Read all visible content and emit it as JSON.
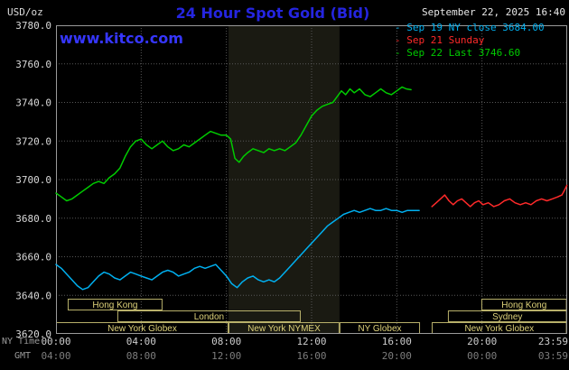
{
  "header": {
    "unit_label": "USD/oz",
    "title": "24 Hour Spot Gold (Bid)",
    "title_color": "#2525e0",
    "datetime": "September 22, 2025 16:40",
    "watermark": "www.kitco.com",
    "watermark_color": "#3636ff"
  },
  "legend": [
    {
      "marker": "-",
      "label": "Sep 19 NY close 3684.00",
      "color": "#00b0f0"
    },
    {
      "marker": "-",
      "label": "Sep 21 Sunday",
      "color": "#ff2a2a"
    },
    {
      "marker": "-",
      "label": "Sep 22 Last 3746.60",
      "color": "#00cc00"
    }
  ],
  "axis": {
    "ny_time_label": "NY Time",
    "gmt_label": "GMT"
  },
  "chart_data": {
    "type": "line",
    "title": "24 Hour Spot Gold (Bid)",
    "xlabel": "NY Time / GMT",
    "ylabel": "USD/oz",
    "x_range": [
      0,
      24
    ],
    "y_range": [
      3620,
      3780
    ],
    "grid": "dotted",
    "grid_color": "#575757",
    "border_color": "#9a9a9a",
    "band": {
      "start": 8.1,
      "end": 13.31,
      "color": "#1a1a12",
      "meaning": "NYMEX session shading"
    },
    "y_ticks": [
      {
        "v": 3780,
        "label": "3780.0"
      },
      {
        "v": 3760,
        "label": "3760.0"
      },
      {
        "v": 3740,
        "label": "3740.0"
      },
      {
        "v": 3720,
        "label": "3720.0"
      },
      {
        "v": 3700,
        "label": "3700.0"
      },
      {
        "v": 3680,
        "label": "3680.0"
      },
      {
        "v": 3660,
        "label": "3660.0"
      },
      {
        "v": 3640,
        "label": "3640.0"
      },
      {
        "v": 3620,
        "label": "3620.0"
      }
    ],
    "x_ticks": [
      {
        "h": 0,
        "ny": "00:00",
        "gmt": "04:00",
        "grid": false,
        "align": "middle"
      },
      {
        "h": 4,
        "ny": "04:00",
        "gmt": "08:00",
        "grid": true,
        "align": "middle"
      },
      {
        "h": 8,
        "ny": "08:00",
        "gmt": "12:00",
        "grid": true,
        "align": "middle"
      },
      {
        "h": 12,
        "ny": "12:00",
        "gmt": "16:00",
        "grid": true,
        "align": "middle"
      },
      {
        "h": 16,
        "ny": "16:00",
        "gmt": "20:00",
        "grid": true,
        "align": "middle"
      },
      {
        "h": 20,
        "ny": "20:00",
        "gmt": "00:00",
        "grid": true,
        "align": "middle"
      },
      {
        "h": 23.983,
        "ny": "23:59",
        "gmt": "03:59",
        "grid": false,
        "align": "end"
      }
    ],
    "series": [
      {
        "id": "sep19",
        "name": "Sep 19 NY close 3684.00",
        "color": "#00b0f0",
        "points": [
          [
            0,
            3656
          ],
          [
            0.25,
            3654
          ],
          [
            0.5,
            3651
          ],
          [
            0.75,
            3648
          ],
          [
            1,
            3645
          ],
          [
            1.25,
            3643
          ],
          [
            1.5,
            3644
          ],
          [
            1.75,
            3647
          ],
          [
            2,
            3650
          ],
          [
            2.25,
            3652
          ],
          [
            2.5,
            3651
          ],
          [
            2.75,
            3649
          ],
          [
            3,
            3648
          ],
          [
            3.25,
            3650
          ],
          [
            3.5,
            3652
          ],
          [
            3.75,
            3651
          ],
          [
            4,
            3650
          ],
          [
            4.25,
            3649
          ],
          [
            4.5,
            3648
          ],
          [
            4.75,
            3650
          ],
          [
            5,
            3652
          ],
          [
            5.25,
            3653
          ],
          [
            5.5,
            3652
          ],
          [
            5.75,
            3650
          ],
          [
            6,
            3651
          ],
          [
            6.25,
            3652
          ],
          [
            6.5,
            3654
          ],
          [
            6.75,
            3655
          ],
          [
            7,
            3654
          ],
          [
            7.25,
            3655
          ],
          [
            7.5,
            3656
          ],
          [
            7.75,
            3653
          ],
          [
            8,
            3650
          ],
          [
            8.25,
            3646
          ],
          [
            8.5,
            3644
          ],
          [
            8.75,
            3647
          ],
          [
            9,
            3649
          ],
          [
            9.25,
            3650
          ],
          [
            9.5,
            3648
          ],
          [
            9.75,
            3647
          ],
          [
            10,
            3648
          ],
          [
            10.25,
            3647
          ],
          [
            10.5,
            3649
          ],
          [
            10.75,
            3652
          ],
          [
            11,
            3655
          ],
          [
            11.25,
            3658
          ],
          [
            11.5,
            3661
          ],
          [
            11.75,
            3664
          ],
          [
            12,
            3667
          ],
          [
            12.25,
            3670
          ],
          [
            12.5,
            3673
          ],
          [
            12.75,
            3676
          ],
          [
            13,
            3678
          ],
          [
            13.25,
            3680
          ],
          [
            13.5,
            3682
          ],
          [
            13.75,
            3683
          ],
          [
            14,
            3684
          ],
          [
            14.25,
            3683
          ],
          [
            14.5,
            3684
          ],
          [
            14.75,
            3685
          ],
          [
            15,
            3684
          ],
          [
            15.25,
            3684
          ],
          [
            15.5,
            3685
          ],
          [
            15.75,
            3684
          ],
          [
            16,
            3684
          ],
          [
            16.25,
            3683
          ],
          [
            16.5,
            3684
          ],
          [
            16.75,
            3684
          ],
          [
            17.05,
            3684
          ]
        ]
      },
      {
        "id": "sep21",
        "name": "Sep 21 Sunday",
        "color": "#ff2a2a",
        "points": [
          [
            17.65,
            3686
          ],
          [
            17.85,
            3688
          ],
          [
            18.05,
            3690
          ],
          [
            18.25,
            3692
          ],
          [
            18.45,
            3689
          ],
          [
            18.65,
            3687
          ],
          [
            18.85,
            3689
          ],
          [
            19.05,
            3690
          ],
          [
            19.25,
            3688
          ],
          [
            19.45,
            3686
          ],
          [
            19.65,
            3688
          ],
          [
            19.85,
            3689
          ],
          [
            20.05,
            3687
          ],
          [
            20.3,
            3688
          ],
          [
            20.55,
            3686
          ],
          [
            20.8,
            3687
          ],
          [
            21.05,
            3689
          ],
          [
            21.3,
            3690
          ],
          [
            21.55,
            3688
          ],
          [
            21.8,
            3687
          ],
          [
            22.05,
            3688
          ],
          [
            22.3,
            3687
          ],
          [
            22.55,
            3689
          ],
          [
            22.8,
            3690
          ],
          [
            23.05,
            3689
          ],
          [
            23.3,
            3690
          ],
          [
            23.55,
            3691
          ],
          [
            23.75,
            3692
          ],
          [
            23.9,
            3695
          ],
          [
            23.983,
            3697
          ]
        ]
      },
      {
        "id": "sep22",
        "name": "Sep 22 Last 3746.60",
        "color": "#00cc00",
        "points": [
          [
            0,
            3693
          ],
          [
            0.25,
            3691
          ],
          [
            0.5,
            3689
          ],
          [
            0.75,
            3690
          ],
          [
            1,
            3692
          ],
          [
            1.25,
            3694
          ],
          [
            1.5,
            3696
          ],
          [
            1.75,
            3698
          ],
          [
            2,
            3699
          ],
          [
            2.25,
            3698
          ],
          [
            2.5,
            3701
          ],
          [
            2.75,
            3703
          ],
          [
            3,
            3706
          ],
          [
            3.25,
            3712
          ],
          [
            3.5,
            3717
          ],
          [
            3.75,
            3720
          ],
          [
            4,
            3721
          ],
          [
            4.25,
            3718
          ],
          [
            4.5,
            3716
          ],
          [
            4.75,
            3718
          ],
          [
            5,
            3720
          ],
          [
            5.25,
            3717
          ],
          [
            5.5,
            3715
          ],
          [
            5.75,
            3716
          ],
          [
            6,
            3718
          ],
          [
            6.25,
            3717
          ],
          [
            6.5,
            3719
          ],
          [
            6.75,
            3721
          ],
          [
            7,
            3723
          ],
          [
            7.25,
            3725
          ],
          [
            7.5,
            3724
          ],
          [
            7.75,
            3723
          ],
          [
            8,
            3723
          ],
          [
            8.2,
            3721
          ],
          [
            8.4,
            3711
          ],
          [
            8.6,
            3709
          ],
          [
            8.8,
            3712
          ],
          [
            9,
            3714
          ],
          [
            9.25,
            3716
          ],
          [
            9.5,
            3715
          ],
          [
            9.75,
            3714
          ],
          [
            10,
            3716
          ],
          [
            10.25,
            3715
          ],
          [
            10.5,
            3716
          ],
          [
            10.75,
            3715
          ],
          [
            11,
            3717
          ],
          [
            11.25,
            3719
          ],
          [
            11.5,
            3723
          ],
          [
            11.75,
            3728
          ],
          [
            12,
            3733
          ],
          [
            12.25,
            3736
          ],
          [
            12.5,
            3738
          ],
          [
            12.75,
            3739
          ],
          [
            13,
            3740
          ],
          [
            13.2,
            3743
          ],
          [
            13.4,
            3746
          ],
          [
            13.6,
            3744
          ],
          [
            13.8,
            3747
          ],
          [
            14,
            3745
          ],
          [
            14.25,
            3747
          ],
          [
            14.5,
            3744
          ],
          [
            14.75,
            3743
          ],
          [
            15,
            3745
          ],
          [
            15.25,
            3747
          ],
          [
            15.5,
            3745
          ],
          [
            15.75,
            3744
          ],
          [
            16,
            3746
          ],
          [
            16.25,
            3748
          ],
          [
            16.45,
            3747
          ],
          [
            16.67,
            3746.6
          ]
        ]
      }
    ],
    "sessions": {
      "border_color": "#b8b06a",
      "text_color": "#ded27a",
      "boxes": [
        {
          "row": 0,
          "start": 0.55,
          "end": 5.0,
          "label": "Hong Kong"
        },
        {
          "row": 0,
          "start": 19.97,
          "end": 23.983,
          "label": "Hong Kong"
        },
        {
          "row": 1,
          "start": 2.88,
          "end": 11.49,
          "label": "London"
        },
        {
          "row": 1,
          "start": 18.4,
          "end": 23.983,
          "label": "Sydney"
        },
        {
          "row": 2,
          "start": 0,
          "end": 8.1,
          "label": "New York Globex"
        },
        {
          "row": 2,
          "start": 8.1,
          "end": 13.31,
          "label": "New York NYMEX"
        },
        {
          "row": 2,
          "start": 13.31,
          "end": 17.09,
          "label": "NY Globex"
        },
        {
          "row": 2,
          "start": 17.64,
          "end": 23.983,
          "label": "New York Globex"
        }
      ]
    }
  }
}
